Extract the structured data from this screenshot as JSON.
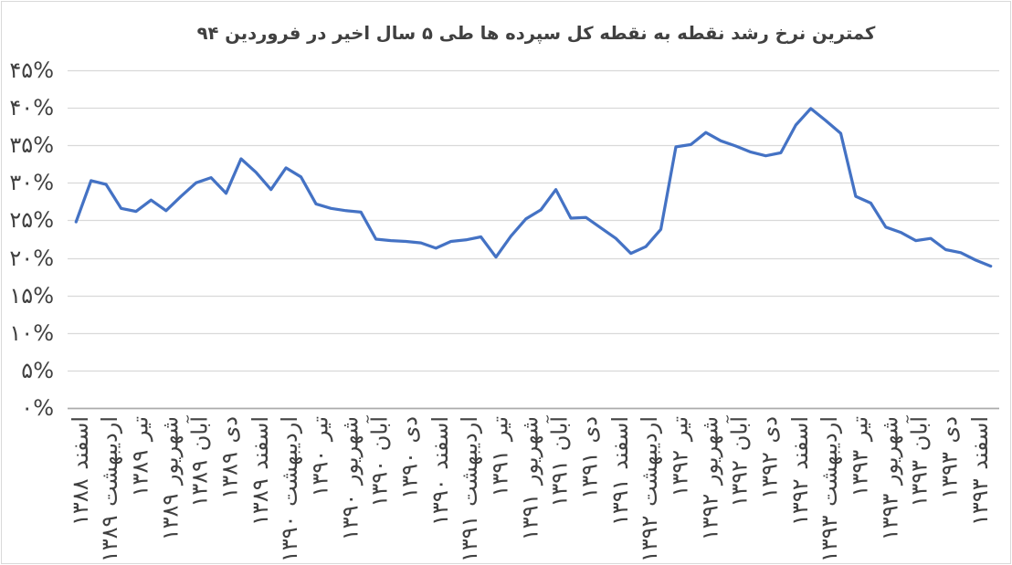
{
  "chart_data": {
    "type": "line",
    "title": "کمترین نرخ رشد نقطه به نقطه کل سپرده ها طی ۵ سال اخیر در فروردین ۹۴",
    "n_points": 62,
    "values": [
      24.8,
      30.3,
      29.8,
      26.6,
      26.2,
      27.7,
      26.3,
      28.2,
      30.0,
      30.7,
      28.6,
      33.2,
      31.4,
      29.1,
      32.0,
      30.8,
      27.2,
      26.6,
      26.3,
      26.1,
      22.5,
      22.3,
      22.2,
      22.0,
      21.3,
      22.2,
      22.4,
      22.8,
      20.1,
      22.9,
      25.2,
      26.4,
      29.1,
      25.3,
      25.4,
      24.0,
      22.6,
      20.6,
      21.5,
      23.8,
      34.8,
      35.1,
      36.7,
      35.6,
      34.9,
      34.1,
      33.6,
      34.0,
      37.7,
      39.9,
      38.3,
      36.6,
      28.2,
      27.3,
      24.1,
      23.4,
      22.3,
      22.6,
      21.1,
      20.7,
      19.7,
      18.9
    ],
    "x_tick_indices": [
      0,
      2,
      4,
      6,
      8,
      10,
      12,
      14,
      16,
      18,
      20,
      22,
      24,
      26,
      28,
      30,
      32,
      34,
      36,
      38,
      40,
      42,
      44,
      46,
      48,
      50,
      52,
      54,
      56,
      58,
      60
    ],
    "x_tick_labels": [
      "اسفند ۱۳۸۸",
      "اردیبهشت ۱۳۸۹",
      "تیر ۱۳۸۹",
      "شهریور ۱۳۸۹",
      "آبان ۱۳۸۹",
      "دی ۱۳۸۹",
      "اسفند ۱۳۸۹",
      "اردیبهشت ۱۳۹۰",
      "تیر ۱۳۹۰",
      "شهریور ۱۳۹۰",
      "آبان ۱۳۹۰",
      "دی ۱۳۹۰",
      "اسفند ۱۳۹۰",
      "اردیبهشت ۱۳۹۱",
      "تیر ۱۳۹۱",
      "شهریور ۱۳۹۱",
      "آبان ۱۳۹۱",
      "دی ۱۳۹۱",
      "اسفند ۱۳۹۱",
      "اردیبهشت ۱۳۹۲",
      "تیر ۱۳۹۲",
      "شهریور ۱۳۹۲",
      "آبان ۱۳۹۲",
      "دی ۱۳۹۲",
      "اسفند ۱۳۹۲",
      "اردیبهشت ۱۳۹۳",
      "تیر ۱۳۹۳",
      "شهریور ۱۳۹۳",
      "آبان ۱۳۹۳",
      "دی ۱۳۹۳",
      "اسفند ۱۳۹۳"
    ],
    "y_tick_labels": [
      "۰%",
      "۵%",
      "۱۰%",
      "۱۵%",
      "۲۰%",
      "۲۵%",
      "۳۰%",
      "۳۵%",
      "۴۰%",
      "۴۵%"
    ],
    "y_tick_values": [
      0,
      5,
      10,
      15,
      20,
      25,
      30,
      35,
      40,
      45
    ],
    "ylim": [
      0,
      45
    ],
    "xlabel": "",
    "ylabel": "",
    "grid": "horizontal",
    "legend": "none",
    "colors": {
      "line": "#4472C4",
      "gridline": "#D9D9D9",
      "axis_line": "#ABABAB",
      "text": "#404040",
      "border": "#D9D9D9",
      "background": "#FFFFFF"
    }
  }
}
